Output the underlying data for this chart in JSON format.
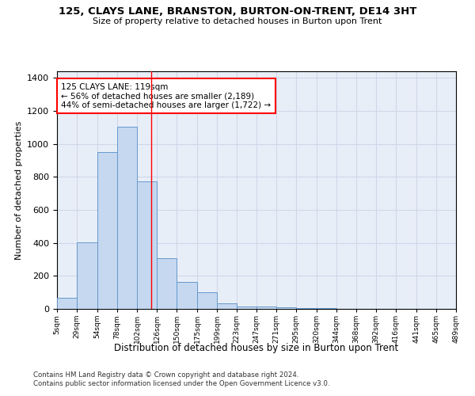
{
  "title": "125, CLAYS LANE, BRANSTON, BURTON-ON-TRENT, DE14 3HT",
  "subtitle": "Size of property relative to detached houses in Burton upon Trent",
  "xlabel": "Distribution of detached houses by size in Burton upon Trent",
  "ylabel": "Number of detached properties",
  "bar_color": "#c5d8f0",
  "bar_edge_color": "#6699cc",
  "background_color": "#e8eef8",
  "annotation_text": "125 CLAYS LANE: 119sqm\n← 56% of detached houses are smaller (2,189)\n44% of semi-detached houses are larger (1,722) →",
  "property_line_x": 119,
  "bin_edges": [
    5,
    29,
    54,
    78,
    102,
    126,
    150,
    175,
    199,
    223,
    247,
    271,
    295,
    320,
    344,
    368,
    392,
    416,
    441,
    465,
    489
  ],
  "bar_heights": [
    65,
    405,
    950,
    1105,
    775,
    305,
    165,
    100,
    35,
    15,
    15,
    10,
    5,
    3,
    2,
    2,
    1,
    0,
    1,
    0
  ],
  "ylim": [
    0,
    1440
  ],
  "yticks": [
    0,
    200,
    400,
    600,
    800,
    1000,
    1200,
    1400
  ],
  "footer_line1": "Contains HM Land Registry data © Crown copyright and database right 2024.",
  "footer_line2": "Contains public sector information licensed under the Open Government Licence v3.0.",
  "grid_color": "#d0d8e8"
}
